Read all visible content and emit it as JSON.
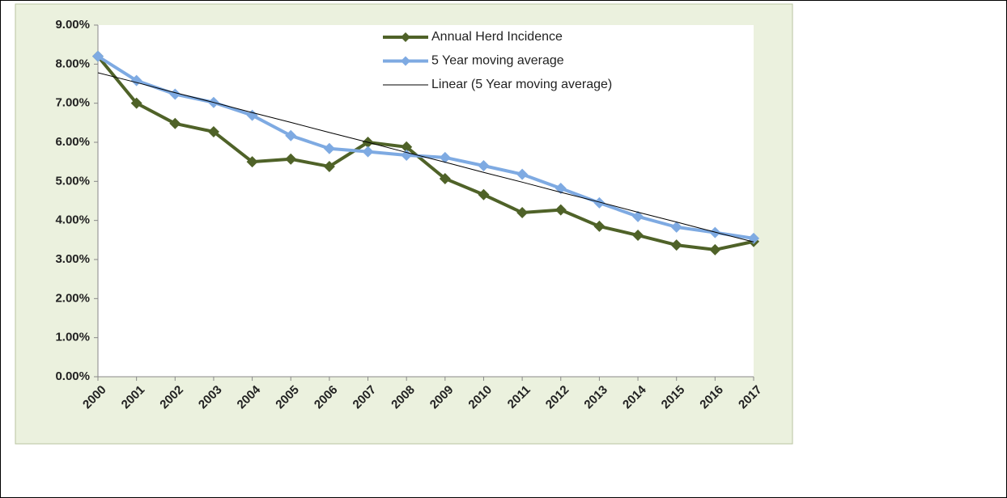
{
  "chart_data": {
    "type": "line",
    "categories": [
      "2000",
      "2001",
      "2002",
      "2003",
      "2004",
      "2005",
      "2006",
      "2007",
      "2008",
      "2009",
      "2010",
      "2011",
      "2012",
      "2013",
      "2014",
      "2015",
      "2016",
      "2017"
    ],
    "series": [
      {
        "name": "Annual Herd Incidence",
        "color": "#4f6228",
        "marker": "diamond",
        "values": [
          8.2,
          7.0,
          6.48,
          6.27,
          5.5,
          5.57,
          5.38,
          6.0,
          5.88,
          5.07,
          4.66,
          4.2,
          4.27,
          3.85,
          3.62,
          3.37,
          3.25,
          3.46
        ]
      },
      {
        "name": "5 Year moving average",
        "color": "#7eaae2",
        "marker": "diamond",
        "values": [
          8.2,
          7.58,
          7.23,
          7.02,
          6.69,
          6.17,
          5.84,
          5.76,
          5.67,
          5.61,
          5.4,
          5.18,
          4.82,
          4.45,
          4.1,
          3.83,
          3.69,
          3.54
        ]
      },
      {
        "name": "Linear (5 Year moving average)",
        "color": "#000000",
        "marker": "none",
        "values": [
          7.78,
          7.53,
          7.27,
          7.02,
          6.76,
          6.51,
          6.25,
          6.0,
          5.74,
          5.49,
          5.23,
          4.98,
          4.72,
          4.47,
          4.21,
          3.96,
          3.7,
          3.45
        ]
      }
    ],
    "ylim": [
      0,
      9
    ],
    "yticks": [
      {
        "value": 0,
        "label": "0.00%"
      },
      {
        "value": 1,
        "label": "1.00%"
      },
      {
        "value": 2,
        "label": "2.00%"
      },
      {
        "value": 3,
        "label": "3.00%"
      },
      {
        "value": 4,
        "label": "4.00%"
      },
      {
        "value": 5,
        "label": "5.00%"
      },
      {
        "value": 6,
        "label": "6.00%"
      },
      {
        "value": 7,
        "label": "7.00%"
      },
      {
        "value": 8,
        "label": "8.00%"
      },
      {
        "value": 9,
        "label": "9.00%"
      }
    ],
    "grid": false,
    "legend": "top"
  }
}
